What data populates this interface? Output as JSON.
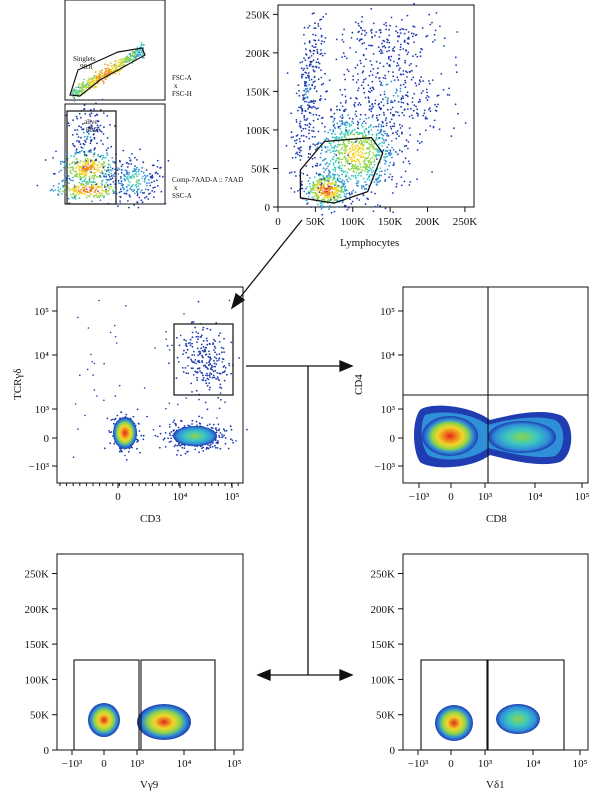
{
  "chart_data": [
    {
      "id": "singlets",
      "type": "scatter",
      "xlabel": "",
      "ylabel": "",
      "side_label": [
        "FSC-A",
        "x",
        "FSC-H"
      ],
      "gate": {
        "name": "Singlets",
        "percent": "98.8"
      },
      "points": [
        [
          0.08,
          0.06
        ],
        [
          0.2,
          0.2
        ],
        [
          0.35,
          0.35
        ],
        [
          0.55,
          0.55
        ],
        [
          0.75,
          0.75
        ],
        [
          0.9,
          0.9
        ]
      ]
    },
    {
      "id": "alive",
      "type": "scatter",
      "xlabel": "",
      "ylabel": "",
      "side_label": [
        "Comp-7AAD-A :: 7AAD",
        "x",
        "SSC-A"
      ],
      "gate": {
        "name": "alive",
        "percent": "89.3"
      }
    },
    {
      "id": "lymphocytes",
      "type": "scatter",
      "xlabel": "Lymphocytes",
      "ylabel": "",
      "x_ticks": [
        "0",
        "50K",
        "100K",
        "150K",
        "200K",
        "250K"
      ],
      "y_ticks": [
        "0",
        "50K",
        "100K",
        "150K",
        "200K",
        "250K"
      ],
      "xlim": [
        0,
        262144
      ],
      "ylim": [
        0,
        262144
      ],
      "gate_polygon": [
        [
          30000,
          12000
        ],
        [
          75000,
          5000
        ],
        [
          120000,
          20000
        ],
        [
          140000,
          70000
        ],
        [
          125000,
          90000
        ],
        [
          62000,
          85000
        ],
        [
          30000,
          48000
        ]
      ]
    },
    {
      "id": "cd3_tcr",
      "type": "scatter",
      "xlabel": "CD3",
      "ylabel": "TCRγδ",
      "x_ticks": [
        "0",
        "10⁴",
        "10⁵"
      ],
      "y_ticks": [
        "−10³",
        "0",
        "10³",
        "10⁴",
        "10⁵"
      ],
      "populations": [
        {
          "x": 0,
          "y": 0,
          "density": "high"
        },
        {
          "x": 20000,
          "y": 0,
          "density": "medium"
        },
        {
          "x": 20000,
          "y": 6000,
          "density": "low"
        }
      ]
    },
    {
      "id": "cd8_cd4",
      "type": "heatmap",
      "xlabel": "CD8",
      "ylabel": "CD4",
      "x_ticks": [
        "−10³",
        "0",
        "10³",
        "10⁴",
        "10⁵"
      ],
      "y_ticks": [
        "−10³",
        "0",
        "10³",
        "10⁴",
        "10⁵"
      ]
    },
    {
      "id": "vg9",
      "type": "heatmap",
      "xlabel": "Vγ9",
      "ylabel": "",
      "x_ticks": [
        "−10³",
        "0",
        "10³",
        "10⁴",
        "10⁵"
      ],
      "y_ticks": [
        "0",
        "50K",
        "100K",
        "150K",
        "200K",
        "250K"
      ]
    },
    {
      "id": "vd1",
      "type": "heatmap",
      "xlabel": "Vδ1",
      "ylabel": "",
      "x_ticks": [
        "−10³",
        "0",
        "10³",
        "10⁴",
        "10⁵"
      ],
      "y_ticks": [
        "0",
        "50K",
        "100K",
        "150K",
        "200K",
        "250K"
      ]
    }
  ],
  "colors": {
    "density": [
      "#1f3cb0",
      "#2f8fd8",
      "#3cc7c0",
      "#8fd44a",
      "#f2d62a",
      "#f08a1e",
      "#e1251b"
    ],
    "axis": "#111111"
  }
}
